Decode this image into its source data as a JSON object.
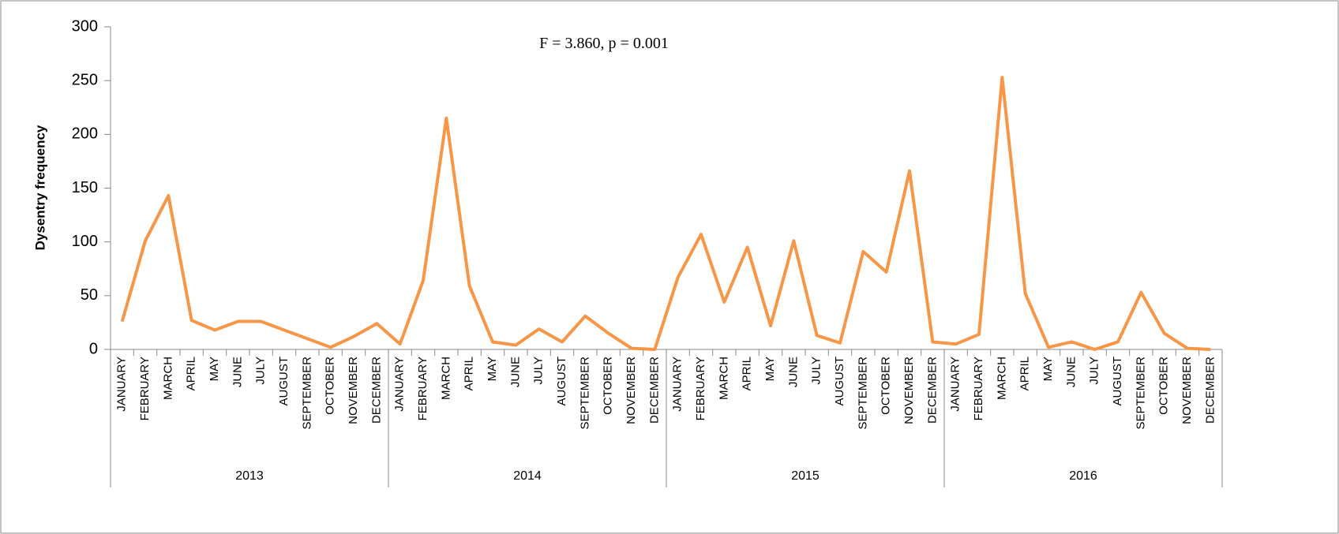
{
  "chart_data": {
    "type": "line",
    "y_label": "Dysentry frequency",
    "annotation": "F = 3.860, p = 0.001",
    "categories": [
      "JANUARY",
      "FEBRUARY",
      "MARCH",
      "APRIL",
      "MAY",
      "JUNE",
      "JULY",
      "AUGUST",
      "SEPTEMBER",
      "OCTOBER",
      "NOVEMBER",
      "DECEMBER",
      "JANUARY",
      "FEBRUARY",
      "MARCH",
      "APRIL",
      "MAY",
      "JUNE",
      "JULY",
      "AUGUST",
      "SEPTEMBER",
      "OCTOBER",
      "NOVEMBER",
      "DECEMBER",
      "JANUARY",
      "FEBRUARY",
      "MARCH",
      "APRIL",
      "MAY",
      "JUNE",
      "JULY",
      "AUGUST",
      "SEPTEMBER",
      "OCTOBER",
      "NOVEMBER",
      "DECEMBER",
      "JANUARY",
      "FEBRUARY",
      "MARCH",
      "APRIL",
      "MAY",
      "JUNE",
      "JULY",
      "AUGUST",
      "SEPTEMBER",
      "OCTOBER",
      "NOVEMBER",
      "DECEMBER"
    ],
    "groups": [
      "2013",
      "2014",
      "2015",
      "2016"
    ],
    "values": [
      26,
      101,
      143,
      27,
      18,
      26,
      26,
      18,
      10,
      2,
      12,
      24,
      5,
      64,
      215,
      59,
      7,
      4,
      19,
      7,
      31,
      15,
      1,
      0,
      67,
      107,
      44,
      95,
      22,
      101,
      13,
      6,
      91,
      72,
      166,
      7,
      5,
      14,
      253,
      52,
      2,
      7,
      0,
      7,
      53,
      15,
      1,
      0
    ],
    "color": "#f79646",
    "ylim": [
      0,
      300
    ],
    "yticks": [
      0,
      50,
      100,
      150,
      200,
      250,
      300
    ],
    "grid": false
  }
}
